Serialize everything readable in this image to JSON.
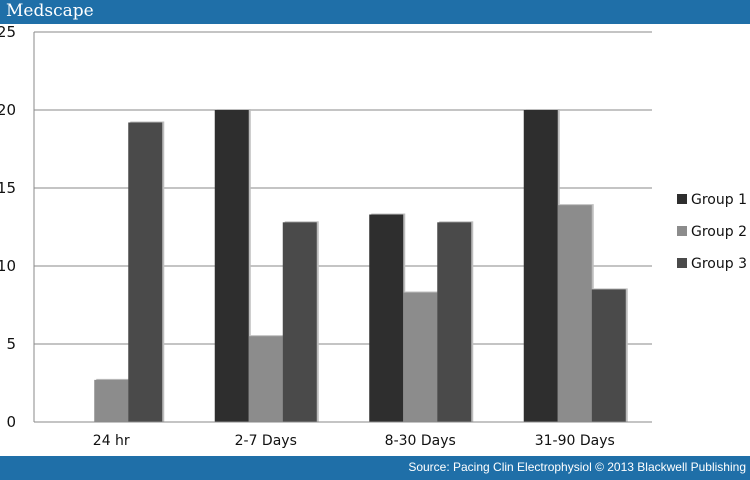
{
  "header": {
    "logo": "Medscape"
  },
  "footer": {
    "source": "Source: Pacing Clin Electrophysiol © 2013 Blackwell Publishing"
  },
  "colors": {
    "bar_blue": "#1f6fa8",
    "group1": "#2e2e2e",
    "group2": "#8c8c8c",
    "group3": "#4a4a4a"
  },
  "chart_data": {
    "type": "bar",
    "title": "",
    "xlabel": "",
    "ylabel": "",
    "categories": [
      "24 hr",
      "2-7 Days",
      "8-30 Days",
      "31-90 Days"
    ],
    "series": [
      {
        "name": "Group 1",
        "values": [
          0,
          20,
          13.3,
          20
        ]
      },
      {
        "name": "Group 2",
        "values": [
          2.7,
          5.5,
          8.3,
          13.9
        ]
      },
      {
        "name": "Group 3",
        "values": [
          19.2,
          12.8,
          12.8,
          8.5
        ]
      }
    ],
    "ylim": [
      0,
      25
    ],
    "yticks": [
      0,
      5,
      10,
      15,
      20,
      25
    ],
    "grid": true,
    "legend": "right"
  }
}
